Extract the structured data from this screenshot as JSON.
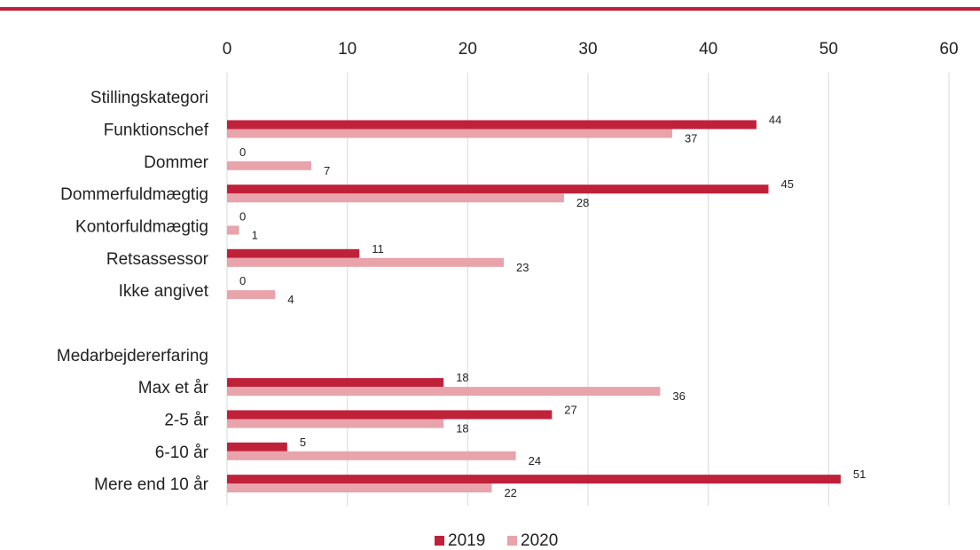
{
  "chart_data": {
    "type": "bar",
    "orientation": "horizontal",
    "title": "",
    "xlabel": "",
    "ylabel": "",
    "xlim": [
      0,
      60
    ],
    "ticks": [
      0,
      10,
      20,
      30,
      40,
      50,
      60
    ],
    "grid": true,
    "legend_position": "bottom",
    "colors": {
      "accent_rule": "#c0213a",
      "s2019": "#c0213a",
      "s2020": "#e8a3ab",
      "grid": "#d9d9d9"
    },
    "categories": [
      "Stillingskategori",
      "Funktionschef",
      "Dommer",
      "Dommerfuldmægtig",
      "Kontorfuldmægtig",
      "Retsassessor",
      "Ikke angivet",
      "",
      "Medarbejdererfaring",
      "Max et år",
      "2-5 år",
      "6-10 år",
      "Mere end 10 år"
    ],
    "series": [
      {
        "name": "2019",
        "values": [
          null,
          44,
          0,
          45,
          0,
          11,
          0,
          null,
          null,
          18,
          27,
          5,
          51
        ]
      },
      {
        "name": "2020",
        "values": [
          null,
          37,
          7,
          28,
          1,
          23,
          4,
          null,
          null,
          36,
          18,
          24,
          22
        ]
      }
    ]
  }
}
